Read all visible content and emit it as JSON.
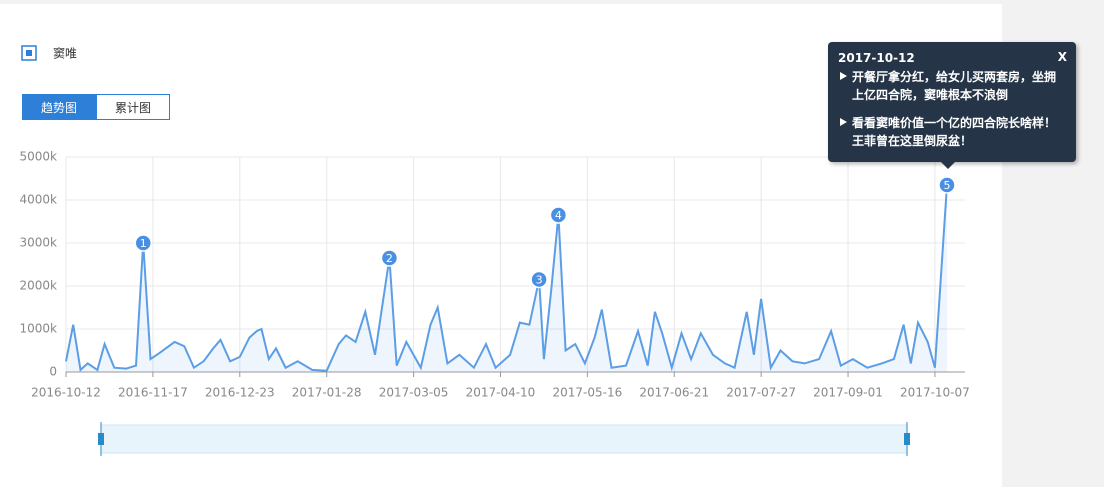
{
  "chart_data": {
    "type": "line",
    "legend": "窦唯",
    "tabs": [
      "趋势图",
      "累计图"
    ],
    "x": [
      "2016-10-12",
      "2016-10-15",
      "2016-10-18",
      "2016-10-21",
      "2016-10-25",
      "2016-10-28",
      "2016-11-01",
      "2016-11-06",
      "2016-11-10",
      "2016-11-13",
      "2016-11-16",
      "2016-11-20",
      "2016-11-26",
      "2016-11-30",
      "2016-12-04",
      "2016-12-08",
      "2016-12-12",
      "2016-12-15",
      "2016-12-19",
      "2016-12-23",
      "2016-12-27",
      "2016-12-30",
      "2017-01-01",
      "2017-01-04",
      "2017-01-07",
      "2017-01-11",
      "2017-01-16",
      "2017-01-22",
      "2017-01-28",
      "2017-02-02",
      "2017-02-05",
      "2017-02-09",
      "2017-02-13",
      "2017-02-17",
      "2017-02-23",
      "2017-02-26",
      "2017-03-02",
      "2017-03-08",
      "2017-03-12",
      "2017-03-15",
      "2017-03-19",
      "2017-03-24",
      "2017-03-30",
      "2017-04-04",
      "2017-04-08",
      "2017-04-14",
      "2017-04-18",
      "2017-04-22",
      "2017-04-26",
      "2017-04-28",
      "2017-05-01",
      "2017-05-04",
      "2017-05-07",
      "2017-05-11",
      "2017-05-15",
      "2017-05-19",
      "2017-05-22",
      "2017-05-26",
      "2017-06-01",
      "2017-06-06",
      "2017-06-10",
      "2017-06-13",
      "2017-06-16",
      "2017-06-20",
      "2017-06-24",
      "2017-06-28",
      "2017-07-02",
      "2017-07-07",
      "2017-07-12",
      "2017-07-16",
      "2017-07-21",
      "2017-07-24",
      "2017-07-27",
      "2017-07-31",
      "2017-08-04",
      "2017-08-09",
      "2017-08-14",
      "2017-08-20",
      "2017-08-25",
      "2017-08-29",
      "2017-09-03",
      "2017-09-09",
      "2017-09-15",
      "2017-09-20",
      "2017-09-24",
      "2017-09-27",
      "2017-09-30",
      "2017-10-04",
      "2017-10-07",
      "2017-10-12"
    ],
    "series": [
      {
        "name": "窦唯",
        "color": "#5b9ee6",
        "values": [
          250,
          1100,
          50,
          200,
          50,
          650,
          100,
          80,
          150,
          3000,
          300,
          450,
          700,
          600,
          100,
          250,
          550,
          750,
          250,
          350,
          800,
          950,
          1000,
          300,
          550,
          100,
          250,
          50,
          30,
          650,
          850,
          700,
          1400,
          400,
          2650,
          150,
          700,
          100,
          1100,
          1500,
          200,
          400,
          100,
          650,
          100,
          400,
          1150,
          1100,
          2150,
          300,
          1900,
          3650,
          500,
          650,
          200,
          800,
          1450,
          100,
          150,
          950,
          150,
          1400,
          900,
          100,
          900,
          300,
          900,
          400,
          200,
          100,
          1400,
          400,
          1700,
          100,
          500,
          250,
          200,
          300,
          950,
          150,
          300,
          100,
          200,
          300,
          1100,
          200,
          1150,
          700,
          100,
          4350
        ]
      }
    ],
    "xlim": [
      "2016-10-12",
      "2017-10-12"
    ],
    "xticks": [
      "2016-10-12",
      "2016-11-17",
      "2016-12-23",
      "2017-01-28",
      "2017-03-05",
      "2017-04-10",
      "2017-05-16",
      "2017-06-21",
      "2017-07-27",
      "2017-09-01",
      "2017-10-07"
    ],
    "ylim": [
      0,
      5000
    ],
    "yticks": [
      0,
      {
        "value": 1000,
        "label": "1000k"
      },
      {
        "value": 2000,
        "label": "2000k"
      },
      {
        "value": 3000,
        "label": "3000k"
      },
      {
        "value": 4000,
        "label": "4000k"
      },
      {
        "value": 5000,
        "label": "5000k"
      }
    ],
    "grid": true,
    "markers": [
      {
        "x": "2016-11-13",
        "label": "1"
      },
      {
        "x": "2017-02-23",
        "label": "2"
      },
      {
        "x": "2017-04-26",
        "label": "3"
      },
      {
        "x": "2017-05-04",
        "label": "4"
      },
      {
        "x": "2017-10-12",
        "label": "5"
      }
    ],
    "tooltip": {
      "title": "2017-10-12",
      "close": "X",
      "items": [
        "开餐厅拿分红，给女儿买两套房，坐拥上亿四合院，窦唯根本不浪倒",
        "看看窦唯价值一个亿的四合院长啥样！王菲曾在这里倒尿盆！"
      ]
    }
  }
}
